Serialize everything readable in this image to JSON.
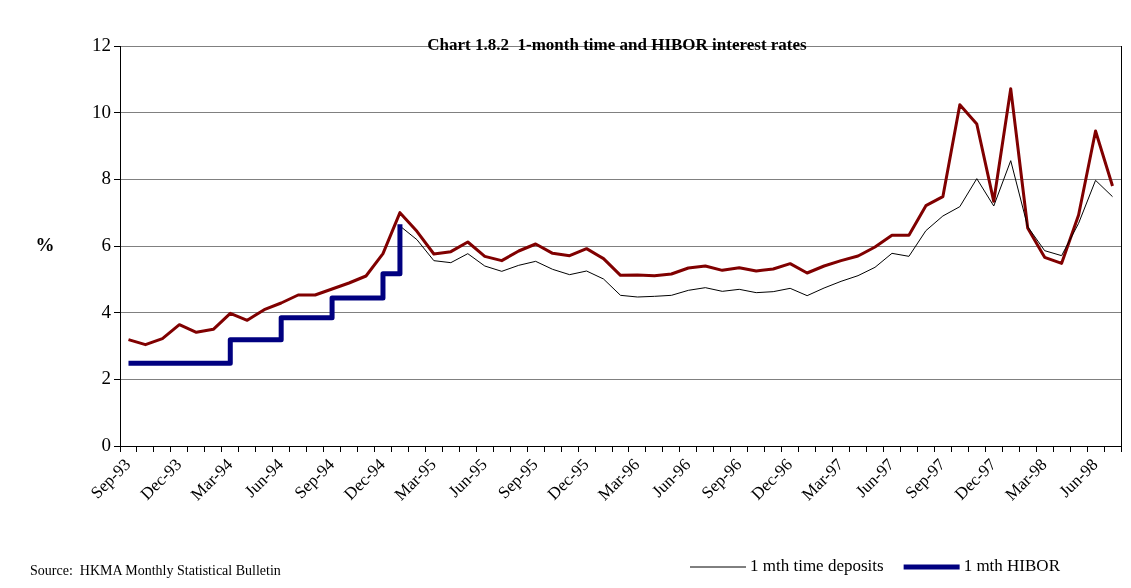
{
  "chart_data": {
    "type": "line",
    "title": "Chart 1.8.2  1-month time and HIBOR interest rates",
    "ylabel": "%",
    "categories": [
      "Sep-93",
      null,
      null,
      "Dec-93",
      null,
      null,
      "Mar-94",
      null,
      null,
      "Jun-94",
      null,
      null,
      "Sep-94",
      null,
      null,
      "Dec-94",
      null,
      null,
      "Mar-95",
      null,
      null,
      "Jun-95",
      null,
      null,
      "Sep-95",
      null,
      null,
      "Dec-95",
      null,
      null,
      "Mar-96",
      null,
      null,
      "Jun-96",
      null,
      null,
      "Sep-96",
      null,
      null,
      "Dec-96",
      null,
      null,
      "Mar-97",
      null,
      null,
      "Jun-97",
      null,
      null,
      "Sep-97",
      null,
      null,
      "Dec-97",
      null,
      null,
      "Mar-98",
      null,
      null,
      "Jun-98",
      null
    ],
    "series": [
      {
        "color": "#800000",
        "type": "line",
        "values": [
          3.19,
          3.04,
          3.22,
          3.64,
          3.41,
          3.5,
          3.98,
          3.77,
          4.09,
          4.29,
          4.53,
          4.53,
          4.71,
          4.89,
          5.1,
          5.77,
          7.0,
          6.44,
          5.76,
          5.83,
          6.12,
          5.69,
          5.56,
          5.85,
          6.06,
          5.78,
          5.71,
          5.92,
          5.62,
          5.12,
          5.13,
          5.11,
          5.16,
          5.34,
          5.4,
          5.27,
          5.35,
          5.25,
          5.31,
          5.47,
          5.19,
          5.4,
          5.56,
          5.7,
          5.97,
          6.32,
          6.32,
          7.21,
          7.48,
          10.24,
          9.66,
          7.34,
          10.72,
          6.54,
          5.66,
          5.48,
          6.93,
          9.45,
          7.8
        ]
      },
      {
        "name": "1 mth time deposits",
        "color": "#000000",
        "type": "line",
        "values": [
          null,
          null,
          null,
          null,
          null,
          null,
          null,
          null,
          null,
          null,
          null,
          null,
          null,
          null,
          null,
          null,
          6.6,
          6.19,
          5.56,
          5.5,
          5.77,
          5.4,
          5.24,
          5.42,
          5.54,
          5.3,
          5.14,
          5.25,
          5.01,
          4.52,
          4.47,
          4.49,
          4.52,
          4.67,
          4.75,
          4.64,
          4.7,
          4.6,
          4.63,
          4.73,
          4.51,
          4.74,
          4.94,
          5.11,
          5.36,
          5.78,
          5.69,
          6.46,
          6.9,
          7.18,
          8.02,
          7.2,
          8.56,
          6.58,
          5.86,
          5.71,
          6.68,
          7.97,
          7.48
        ]
      },
      {
        "name": "1 mth HIBOR",
        "color": "#000080",
        "type": "step",
        "values": [
          2.48,
          2.48,
          2.48,
          2.48,
          2.48,
          2.48,
          3.19,
          3.19,
          3.19,
          3.85,
          3.85,
          3.85,
          4.44,
          4.44,
          4.44,
          5.17,
          6.65,
          null,
          null,
          null,
          null,
          null,
          null,
          null,
          null,
          null,
          null,
          null,
          null,
          null,
          null,
          null,
          null,
          null,
          null,
          null,
          null,
          null,
          null,
          null,
          null,
          null,
          null,
          null,
          null,
          null,
          null,
          null,
          null,
          null,
          null,
          null,
          null,
          null,
          null,
          null,
          null,
          null,
          null
        ]
      }
    ],
    "ylim": [
      0,
      12
    ],
    "yticks": [
      0,
      2,
      4,
      6,
      8,
      10,
      12
    ],
    "grid": "y",
    "legend": "bottom right",
    "marker": "none",
    "line_style": "solid",
    "annotations": [
      "Source:  HKMA Monthly Statistical Bulletin"
    ]
  }
}
